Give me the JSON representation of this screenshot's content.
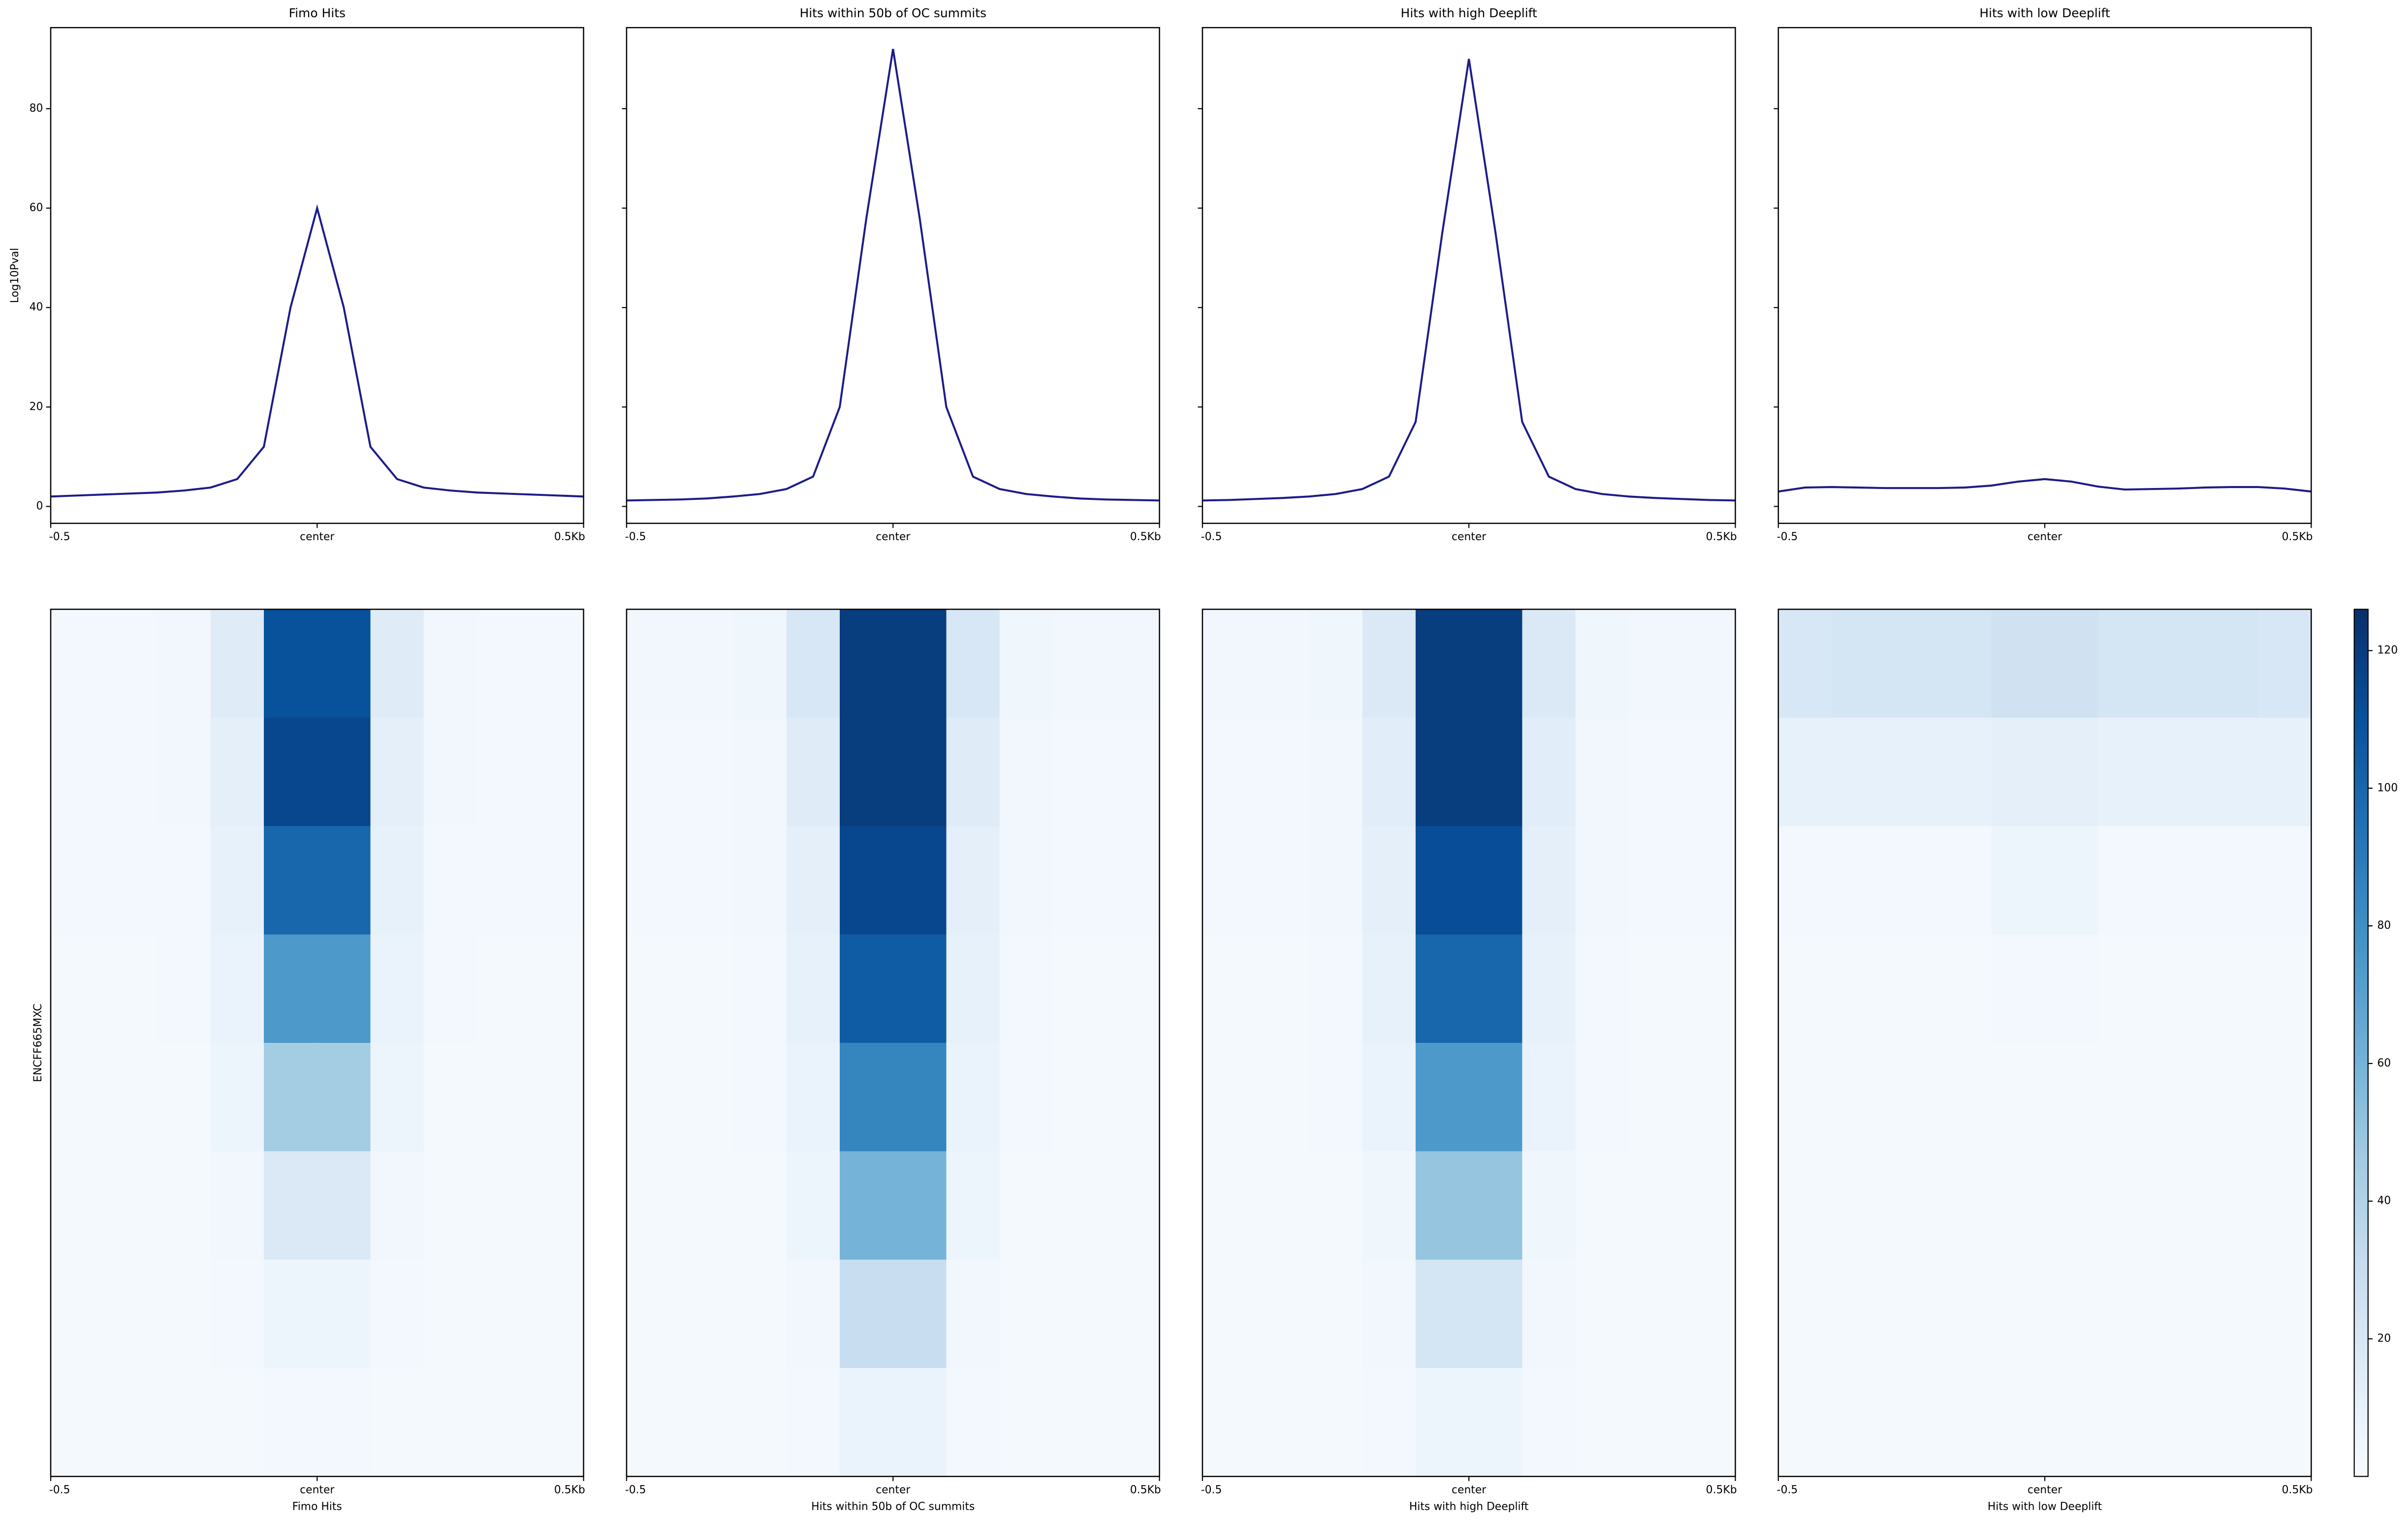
{
  "chart_data": [
    {
      "type": "line",
      "title": "Fimo Hits",
      "ylabel": "Log10Pval",
      "x": [
        -0.5,
        -0.45,
        -0.4,
        -0.35,
        -0.3,
        -0.25,
        -0.2,
        -0.15,
        -0.1,
        -0.05,
        0,
        0.05,
        0.1,
        0.15,
        0.2,
        0.25,
        0.3,
        0.35,
        0.4,
        0.45,
        0.5
      ],
      "color": "#1c1c8a",
      "values": [
        2,
        2.2,
        2.4,
        2.6,
        2.8,
        3.2,
        3.8,
        5.5,
        12,
        40,
        60,
        40,
        12,
        5.5,
        3.8,
        3.2,
        2.8,
        2.6,
        2.4,
        2.2,
        2
      ],
      "xlim": [
        -0.5,
        0.5
      ],
      "xticks": [
        -0.5,
        {
          "value": 0,
          "label": "center"
        },
        {
          "value": 0.5,
          "label": "0.5Kb"
        }
      ],
      "ylim": [
        -3.4,
        96.3
      ],
      "yticks": [
        0,
        20,
        40,
        60,
        80
      ]
    },
    {
      "type": "line",
      "title": "Hits within 50b of OC summits",
      "x": [
        -0.5,
        -0.45,
        -0.4,
        -0.35,
        -0.3,
        -0.25,
        -0.2,
        -0.15,
        -0.1,
        -0.05,
        0,
        0.05,
        0.1,
        0.15,
        0.2,
        0.25,
        0.3,
        0.35,
        0.4,
        0.45,
        0.5
      ],
      "color": "#1c1c8a",
      "values": [
        1.2,
        1.3,
        1.4,
        1.6,
        2,
        2.5,
        3.5,
        6,
        20,
        58,
        92,
        58,
        20,
        6,
        3.5,
        2.5,
        2,
        1.6,
        1.4,
        1.3,
        1.2
      ],
      "xlim": [
        -0.5,
        0.5
      ],
      "xticks": [
        -0.5,
        {
          "value": 0,
          "label": "center"
        },
        {
          "value": 0.5,
          "label": "0.5Kb"
        }
      ],
      "ylim": [
        -3.4,
        96.3
      ],
      "yticks": [
        0,
        20,
        40,
        60,
        80
      ]
    },
    {
      "type": "line",
      "title": "Hits with high Deeplift",
      "x": [
        -0.5,
        -0.45,
        -0.4,
        -0.35,
        -0.3,
        -0.25,
        -0.2,
        -0.15,
        -0.1,
        -0.05,
        0,
        0.05,
        0.1,
        0.15,
        0.2,
        0.25,
        0.3,
        0.35,
        0.4,
        0.45,
        0.5
      ],
      "color": "#1c1c8a",
      "values": [
        1.2,
        1.3,
        1.5,
        1.7,
        2,
        2.5,
        3.5,
        6,
        17,
        55,
        90,
        55,
        17,
        6,
        3.5,
        2.5,
        2,
        1.7,
        1.5,
        1.3,
        1.2
      ],
      "xlim": [
        -0.5,
        0.5
      ],
      "xticks": [
        -0.5,
        {
          "value": 0,
          "label": "center"
        },
        {
          "value": 0.5,
          "label": "0.5Kb"
        }
      ],
      "ylim": [
        -3.4,
        96.3
      ],
      "yticks": [
        0,
        20,
        40,
        60,
        80
      ]
    },
    {
      "type": "line",
      "title": "Hits with low Deeplift",
      "x": [
        -0.5,
        -0.45,
        -0.4,
        -0.35,
        -0.3,
        -0.25,
        -0.2,
        -0.15,
        -0.1,
        -0.05,
        0,
        0.05,
        0.1,
        0.15,
        0.2,
        0.25,
        0.3,
        0.35,
        0.4,
        0.45,
        0.5
      ],
      "color": "#1c1c8a",
      "values": [
        3,
        3.8,
        3.9,
        3.8,
        3.7,
        3.7,
        3.7,
        3.8,
        4.2,
        5,
        5.5,
        5,
        4,
        3.4,
        3.5,
        3.6,
        3.8,
        3.9,
        3.9,
        3.6,
        3
      ],
      "xlim": [
        -0.5,
        0.5
      ],
      "xticks": [
        -0.5,
        {
          "value": 0,
          "label": "center"
        },
        {
          "value": 0.5,
          "label": "0.5Kb"
        }
      ],
      "ylim": [
        -3.4,
        96.3
      ],
      "yticks": [
        0,
        20,
        40,
        60,
        80
      ]
    },
    {
      "type": "heatmap",
      "xlabel": "Fimo Hits",
      "ylabel": "ENCFF665MXC",
      "xlim": [
        -0.5,
        0.5
      ],
      "xticks": [
        -0.5,
        {
          "value": 0,
          "label": "center"
        },
        {
          "value": 0.5,
          "label": "0.5Kb"
        }
      ],
      "values": [
        [
          3,
          3,
          4,
          15,
          110,
          110,
          15,
          4,
          3,
          3
        ],
        [
          3,
          3,
          4,
          12,
          115,
          115,
          12,
          4,
          3,
          3
        ],
        [
          3,
          3,
          3,
          10,
          100,
          100,
          10,
          3,
          3,
          3
        ],
        [
          2,
          2,
          3,
          8,
          75,
          75,
          8,
          3,
          2,
          2
        ],
        [
          2,
          2,
          2,
          6,
          45,
          45,
          6,
          2,
          2,
          2
        ],
        [
          2,
          2,
          2,
          4,
          18,
          18,
          4,
          2,
          2,
          2
        ],
        [
          2,
          2,
          2,
          3,
          6,
          6,
          3,
          2,
          2,
          2
        ],
        [
          2,
          2,
          2,
          2,
          3,
          3,
          2,
          2,
          2,
          2
        ]
      ]
    },
    {
      "type": "heatmap",
      "xlabel": "Hits within 50b of OC summits",
      "xlim": [
        -0.5,
        0.5
      ],
      "xticks": [
        -0.5,
        {
          "value": 0,
          "label": "center"
        },
        {
          "value": 0.5,
          "label": "0.5Kb"
        }
      ],
      "values": [
        [
          4,
          4,
          5,
          20,
          120,
          120,
          20,
          5,
          4,
          4
        ],
        [
          3,
          3,
          4,
          15,
          120,
          120,
          15,
          4,
          3,
          3
        ],
        [
          3,
          3,
          4,
          12,
          115,
          115,
          12,
          4,
          3,
          3
        ],
        [
          2,
          2,
          3,
          10,
          105,
          105,
          10,
          3,
          2,
          2
        ],
        [
          2,
          2,
          3,
          8,
          85,
          85,
          8,
          3,
          2,
          2
        ],
        [
          2,
          2,
          2,
          6,
          60,
          60,
          6,
          2,
          2,
          2
        ],
        [
          2,
          2,
          2,
          4,
          30,
          30,
          4,
          2,
          2,
          2
        ],
        [
          2,
          2,
          2,
          3,
          8,
          8,
          3,
          2,
          2,
          2
        ]
      ]
    },
    {
      "type": "heatmap",
      "xlabel": "Hits with high Deeplift",
      "xlim": [
        -0.5,
        0.5
      ],
      "xticks": [
        -0.5,
        {
          "value": 0,
          "label": "center"
        },
        {
          "value": 0.5,
          "label": "0.5Kb"
        }
      ],
      "values": [
        [
          4,
          4,
          5,
          18,
          120,
          120,
          18,
          5,
          4,
          4
        ],
        [
          3,
          3,
          4,
          14,
          120,
          120,
          14,
          4,
          3,
          3
        ],
        [
          3,
          3,
          4,
          12,
          112,
          112,
          12,
          4,
          3,
          3
        ],
        [
          2,
          2,
          3,
          10,
          100,
          100,
          10,
          3,
          2,
          2
        ],
        [
          2,
          2,
          3,
          8,
          75,
          75,
          8,
          3,
          2,
          2
        ],
        [
          2,
          2,
          2,
          5,
          50,
          50,
          5,
          2,
          2,
          2
        ],
        [
          2,
          2,
          2,
          4,
          22,
          22,
          4,
          2,
          2,
          2
        ],
        [
          2,
          2,
          2,
          3,
          6,
          6,
          3,
          2,
          2,
          2
        ]
      ]
    },
    {
      "type": "heatmap",
      "xlabel": "Hits with low Deeplift",
      "xlim": [
        -0.5,
        0.5
      ],
      "xticks": [
        -0.5,
        {
          "value": 0,
          "label": "center"
        },
        {
          "value": 0.5,
          "label": "0.5Kb"
        }
      ],
      "values": [
        [
          20,
          22,
          22,
          22,
          25,
          25,
          22,
          22,
          22,
          20
        ],
        [
          10,
          10,
          10,
          10,
          12,
          12,
          10,
          10,
          10,
          10
        ],
        [
          3,
          3,
          3,
          3,
          6,
          6,
          3,
          3,
          3,
          3
        ],
        [
          2,
          2,
          2,
          2,
          3,
          3,
          2,
          2,
          2,
          2
        ],
        [
          2,
          2,
          2,
          2,
          2,
          2,
          2,
          2,
          2,
          2
        ],
        [
          2,
          2,
          2,
          2,
          2,
          2,
          2,
          2,
          2,
          2
        ],
        [
          2,
          2,
          2,
          2,
          2,
          2,
          2,
          2,
          2,
          2
        ],
        [
          2,
          2,
          2,
          2,
          2,
          2,
          2,
          2,
          2,
          2
        ]
      ]
    }
  ],
  "colorbar": {
    "zlim": [
      0,
      126
    ],
    "zticks": [
      20,
      40,
      60,
      80,
      100,
      120
    ],
    "colors": [
      "#f7fbff",
      "#deebf7",
      "#c6dbef",
      "#9ecae1",
      "#6baed6",
      "#4292c6",
      "#2171b5",
      "#08519c",
      "#08306b"
    ]
  }
}
